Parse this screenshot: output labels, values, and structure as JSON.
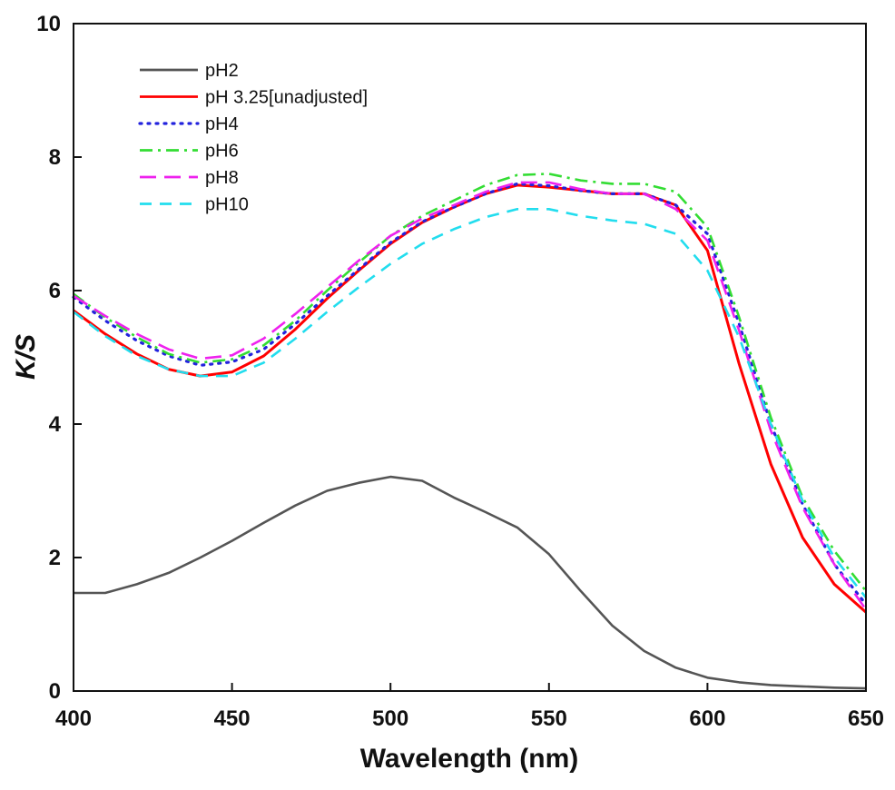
{
  "chart_data": {
    "type": "line",
    "xlabel": "Wavelength (nm)",
    "ylabel": "K/S",
    "xlim": [
      400,
      650
    ],
    "ylim": [
      0,
      10
    ],
    "xticks": [
      400,
      450,
      500,
      550,
      600,
      650
    ],
    "yticks": [
      0,
      2,
      4,
      6,
      8,
      10
    ],
    "grid": false,
    "legend_position": "top-left",
    "series": [
      {
        "name": "pH2",
        "color": "#555555",
        "dash": "solid",
        "x": [
          400,
          410,
          420,
          430,
          440,
          450,
          460,
          470,
          480,
          490,
          500,
          510,
          520,
          530,
          540,
          550,
          560,
          570,
          580,
          590,
          600,
          610,
          620,
          630,
          640,
          650
        ],
        "y": [
          1.47,
          1.47,
          1.6,
          1.77,
          2.0,
          2.25,
          2.52,
          2.78,
          3.0,
          3.12,
          3.21,
          3.15,
          2.9,
          2.68,
          2.45,
          2.05,
          1.5,
          0.98,
          0.6,
          0.35,
          0.2,
          0.13,
          0.09,
          0.07,
          0.05,
          0.04
        ]
      },
      {
        "name": "pH 3.25[unadjusted]",
        "color": "#ff0000",
        "dash": "solid",
        "x": [
          400,
          410,
          420,
          430,
          440,
          450,
          460,
          470,
          480,
          490,
          500,
          510,
          520,
          530,
          540,
          550,
          560,
          570,
          580,
          590,
          600,
          610,
          620,
          630,
          640,
          650
        ],
        "y": [
          5.7,
          5.35,
          5.05,
          4.82,
          4.72,
          4.78,
          5.02,
          5.42,
          5.88,
          6.3,
          6.7,
          7.02,
          7.25,
          7.45,
          7.58,
          7.55,
          7.5,
          7.45,
          7.45,
          7.28,
          6.6,
          4.9,
          3.4,
          2.3,
          1.6,
          1.18
        ]
      },
      {
        "name": "pH4",
        "color": "#2222dd",
        "dash": "dotted",
        "x": [
          400,
          410,
          420,
          430,
          440,
          450,
          460,
          470,
          480,
          490,
          500,
          510,
          520,
          530,
          540,
          550,
          560,
          570,
          580,
          590,
          600,
          610,
          620,
          630,
          640,
          650
        ],
        "y": [
          5.9,
          5.55,
          5.25,
          5.02,
          4.88,
          4.93,
          5.12,
          5.5,
          5.92,
          6.32,
          6.72,
          7.03,
          7.25,
          7.45,
          7.6,
          7.57,
          7.5,
          7.45,
          7.45,
          7.28,
          6.85,
          5.5,
          4.0,
          2.8,
          1.9,
          1.3
        ]
      },
      {
        "name": "pH6",
        "color": "#33dd33",
        "dash": "dashdot",
        "x": [
          400,
          410,
          420,
          430,
          440,
          450,
          460,
          470,
          480,
          490,
          500,
          510,
          520,
          530,
          540,
          550,
          560,
          570,
          580,
          590,
          600,
          610,
          620,
          630,
          640,
          650
        ],
        "y": [
          5.95,
          5.6,
          5.3,
          5.05,
          4.92,
          4.97,
          5.18,
          5.55,
          6.0,
          6.42,
          6.82,
          7.12,
          7.35,
          7.58,
          7.73,
          7.75,
          7.65,
          7.6,
          7.6,
          7.48,
          6.95,
          5.6,
          4.1,
          2.9,
          2.1,
          1.5
        ]
      },
      {
        "name": "pH8",
        "color": "#ee22ee",
        "dash": "longdash",
        "x": [
          400,
          410,
          420,
          430,
          440,
          450,
          460,
          470,
          480,
          490,
          500,
          510,
          520,
          530,
          540,
          550,
          560,
          570,
          580,
          590,
          600,
          610,
          620,
          630,
          640,
          650
        ],
        "y": [
          5.92,
          5.62,
          5.35,
          5.12,
          4.98,
          5.03,
          5.28,
          5.65,
          6.05,
          6.45,
          6.82,
          7.08,
          7.28,
          7.48,
          7.62,
          7.62,
          7.52,
          7.45,
          7.45,
          7.22,
          6.75,
          5.4,
          3.9,
          2.75,
          1.9,
          1.22
        ]
      },
      {
        "name": "pH10",
        "color": "#22ddee",
        "dash": "dashed",
        "x": [
          400,
          410,
          420,
          430,
          440,
          450,
          460,
          470,
          480,
          490,
          500,
          510,
          520,
          530,
          540,
          550,
          560,
          570,
          580,
          590,
          600,
          610,
          620,
          630,
          640,
          650
        ],
        "y": [
          5.68,
          5.32,
          5.02,
          4.82,
          4.72,
          4.72,
          4.92,
          5.28,
          5.68,
          6.05,
          6.4,
          6.7,
          6.92,
          7.1,
          7.22,
          7.22,
          7.12,
          7.05,
          7.0,
          6.85,
          6.3,
          5.3,
          4.0,
          2.85,
          2.0,
          1.4
        ]
      }
    ]
  }
}
